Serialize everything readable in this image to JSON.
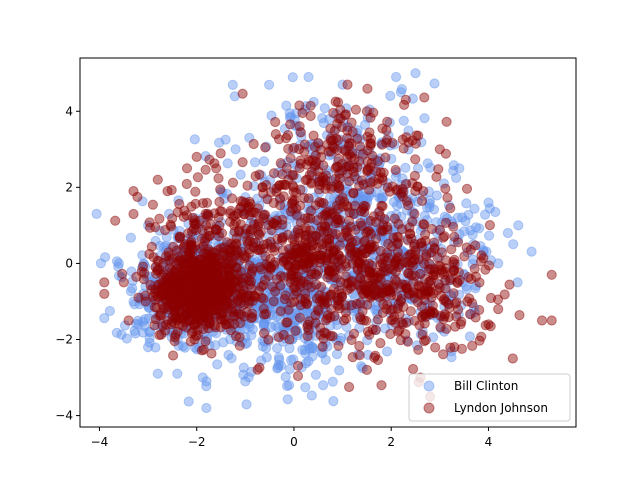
{
  "chart_data": {
    "type": "scatter",
    "title": "",
    "xlabel": "",
    "ylabel": "",
    "xlim": [
      -4.4,
      5.8
    ],
    "ylim": [
      -4.3,
      5.4
    ],
    "xticks": [
      -4,
      -2,
      0,
      2,
      4
    ],
    "yticks": [
      -4,
      -2,
      0,
      2,
      4
    ],
    "grid": false,
    "legend_placement": "lower-right",
    "marker_alpha": 0.45,
    "series": [
      {
        "name": "Bill Clinton",
        "color": "#6495ed",
        "count": 1600,
        "clusters": [
          {
            "cx": -1.9,
            "cy": -0.6,
            "sx": 0.75,
            "sy": 0.75,
            "w": 0.33
          },
          {
            "cx": -0.2,
            "cy": -0.9,
            "sx": 1.0,
            "sy": 1.0,
            "w": 0.27
          },
          {
            "cx": 0.8,
            "cy": 1.8,
            "sx": 1.0,
            "sy": 1.4,
            "w": 0.22
          },
          {
            "cx": 2.2,
            "cy": 0.0,
            "sx": 1.0,
            "sy": 1.0,
            "w": 0.18
          }
        ],
        "points": [
          [
            -3.3,
            -1.0
          ],
          [
            -2.8,
            -2.9
          ],
          [
            -2.4,
            -2.9
          ],
          [
            -1.8,
            -3.8
          ],
          [
            -1.8,
            -3.1
          ],
          [
            -1.0,
            -3.1
          ],
          [
            -0.1,
            -3.2
          ],
          [
            0.6,
            -3.2
          ],
          [
            0.3,
            4.9
          ],
          [
            2.1,
            4.9
          ],
          [
            2.5,
            5.0
          ],
          [
            1.0,
            4.7
          ],
          [
            2.2,
            4.5
          ],
          [
            -3.6,
            0.0
          ],
          [
            -3.0,
            1.0
          ],
          [
            4.4,
            0.8
          ],
          [
            4.6,
            -0.5
          ],
          [
            4.0,
            1.6
          ],
          [
            3.9,
            0.3
          ],
          [
            3.4,
            2.5
          ],
          [
            4.2,
            0.0
          ],
          [
            -1.2,
            3.0
          ],
          [
            -3.2,
            -1.6
          ],
          [
            -3.0,
            -2.2
          ]
        ]
      },
      {
        "name": "Lyndon Johnson",
        "color": "#8b0000",
        "count": 1900,
        "clusters": [
          {
            "cx": -2.0,
            "cy": -0.75,
            "sx": 0.45,
            "sy": 0.5,
            "w": 0.35
          },
          {
            "cx": -1.5,
            "cy": 0.6,
            "sx": 0.8,
            "sy": 0.8,
            "w": 0.12
          },
          {
            "cx": 0.3,
            "cy": 0.0,
            "sx": 0.9,
            "sy": 0.9,
            "w": 0.18
          },
          {
            "cx": 1.0,
            "cy": 2.3,
            "sx": 0.9,
            "sy": 1.0,
            "w": 0.15
          },
          {
            "cx": 2.3,
            "cy": -0.6,
            "sx": 0.9,
            "sy": 0.9,
            "w": 0.2
          }
        ],
        "points": [
          [
            -3.9,
            -0.5
          ],
          [
            -3.9,
            -0.8
          ],
          [
            -3.4,
            -1.5
          ],
          [
            -3.3,
            1.9
          ],
          [
            -3.3,
            1.3
          ],
          [
            -3.5,
            -0.5
          ],
          [
            -2.8,
            2.2
          ],
          [
            -2.6,
            1.9
          ],
          [
            -2.2,
            2.5
          ],
          [
            -1.6,
            2.5
          ],
          [
            -2.0,
            2.8
          ],
          [
            5.3,
            -0.3
          ],
          [
            5.3,
            -1.5
          ],
          [
            5.1,
            -1.5
          ],
          [
            4.5,
            -2.5
          ],
          [
            4.2,
            -1.2
          ],
          [
            4.0,
            -1.6
          ],
          [
            1.1,
            4.7
          ],
          [
            2.3,
            4.3
          ],
          [
            1.5,
            4.0
          ],
          [
            2.8,
            -3.5
          ],
          [
            2.6,
            -3.0
          ],
          [
            1.8,
            -3.2
          ],
          [
            1.5,
            -2.8
          ],
          [
            3.3,
            -2.2
          ],
          [
            1.9,
            3.5
          ],
          [
            3.0,
            3.0
          ]
        ]
      }
    ]
  }
}
